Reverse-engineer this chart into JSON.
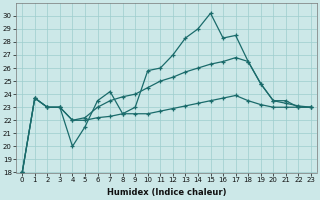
{
  "xlabel": "Humidex (Indice chaleur)",
  "ylabel": "",
  "bg_color": "#cce8e8",
  "grid_color": "#9ecece",
  "line_color": "#1a6b6b",
  "xlim": [
    -0.5,
    23.5
  ],
  "ylim": [
    18,
    31
  ],
  "yticks": [
    18,
    19,
    20,
    21,
    22,
    23,
    24,
    25,
    26,
    27,
    28,
    29,
    30
  ],
  "xticks": [
    0,
    1,
    2,
    3,
    4,
    5,
    6,
    7,
    8,
    9,
    10,
    11,
    12,
    13,
    14,
    15,
    16,
    17,
    18,
    19,
    20,
    21,
    22,
    23
  ],
  "line1_x": [
    0,
    1,
    2,
    3,
    4,
    5,
    6,
    7,
    8,
    9,
    10,
    11,
    12,
    13,
    14,
    15,
    16,
    17,
    18,
    19,
    20,
    21,
    22,
    23
  ],
  "line1_y": [
    18,
    23.7,
    23.0,
    23.0,
    20.0,
    21.5,
    23.5,
    24.2,
    22.5,
    23.0,
    25.8,
    26.0,
    27.0,
    28.3,
    29.0,
    30.2,
    28.3,
    28.5,
    26.5,
    24.8,
    23.5,
    23.5,
    23.0,
    23.0
  ],
  "line2_x": [
    0,
    1,
    2,
    3,
    4,
    5,
    6,
    7,
    8,
    9,
    10,
    11,
    12,
    13,
    14,
    15,
    16,
    17,
    18,
    19,
    20,
    21,
    22,
    23
  ],
  "line2_y": [
    18,
    23.7,
    23.0,
    23.0,
    22.0,
    22.2,
    23.0,
    23.5,
    23.8,
    24.0,
    24.5,
    25.0,
    25.3,
    25.7,
    26.0,
    26.3,
    26.5,
    26.8,
    26.5,
    24.8,
    23.5,
    23.3,
    23.1,
    23.0
  ],
  "line3_x": [
    0,
    1,
    2,
    3,
    4,
    5,
    6,
    7,
    8,
    9,
    10,
    11,
    12,
    13,
    14,
    15,
    16,
    17,
    18,
    19,
    20,
    21,
    22,
    23
  ],
  "line3_y": [
    18,
    23.7,
    23.0,
    23.0,
    22.0,
    22.0,
    22.2,
    22.3,
    22.5,
    22.5,
    22.5,
    22.7,
    22.9,
    23.1,
    23.3,
    23.5,
    23.7,
    23.9,
    23.5,
    23.2,
    23.0,
    23.0,
    23.0,
    23.0
  ]
}
